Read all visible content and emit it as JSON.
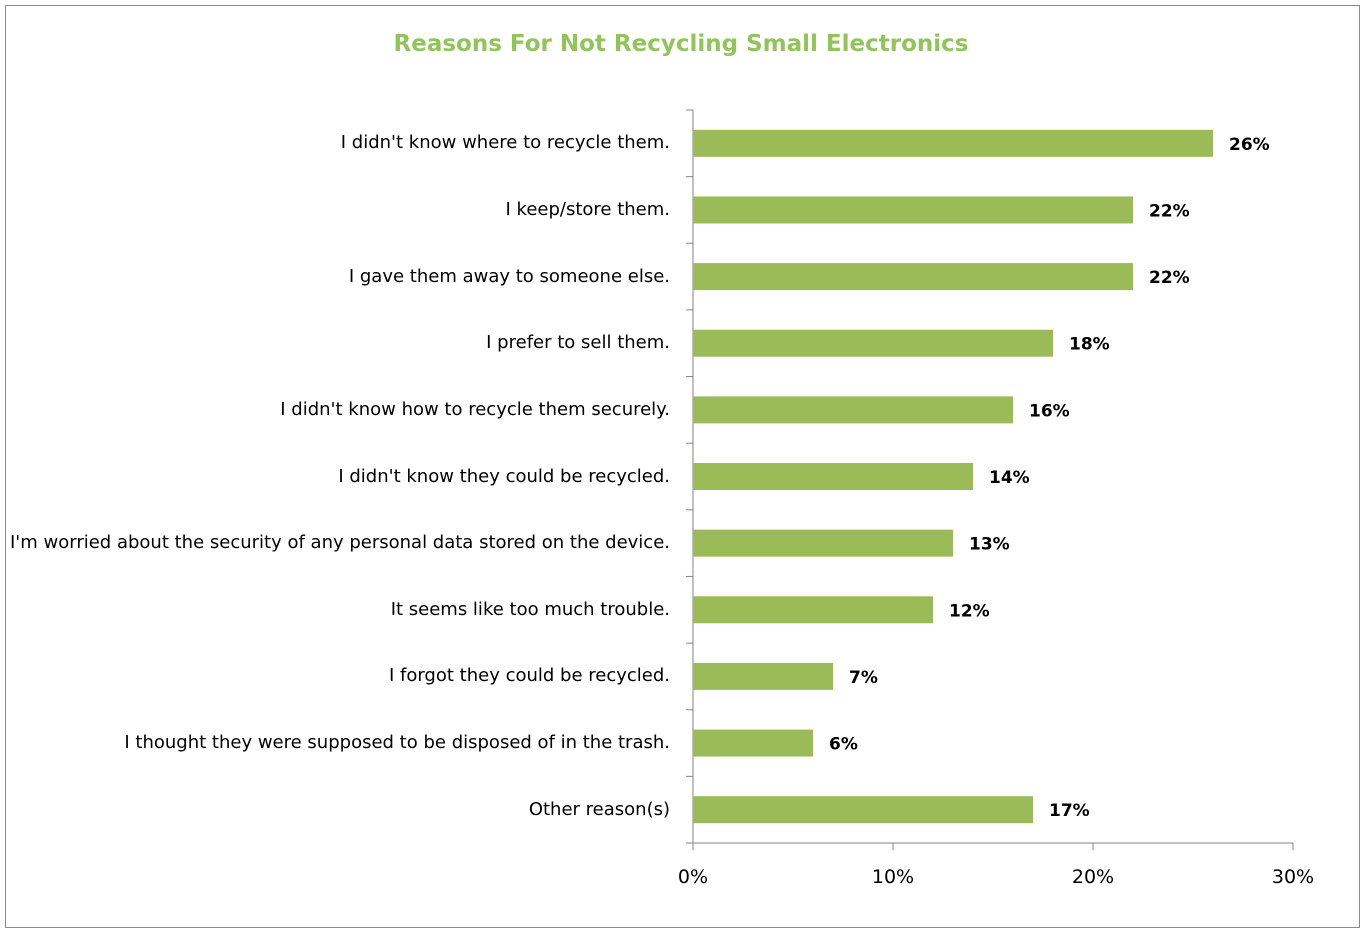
{
  "chart_data": {
    "type": "bar",
    "orientation": "horizontal",
    "title": "Reasons For Not Recycling Small Electronics",
    "categories": [
      "I didn't know where to recycle them.",
      "I keep/store them.",
      "I gave them away to someone else.",
      "I prefer to sell them.",
      "I didn't know how to recycle them securely.",
      "I didn't know they could be recycled.",
      "I'm worried about the security of any personal data stored on the device.",
      "It seems like too much trouble.",
      "I forgot they could be recycled.",
      "I thought they were supposed to be disposed of in the trash.",
      "Other reason(s)"
    ],
    "values": [
      26,
      22,
      22,
      18,
      16,
      14,
      13,
      12,
      7,
      6,
      17
    ],
    "value_labels": [
      "26%",
      "22%",
      "22%",
      "18%",
      "16%",
      "14%",
      "13%",
      "12%",
      "7%",
      "6%",
      "17%"
    ],
    "xlim": [
      0,
      30
    ],
    "x_ticks": [
      0,
      10,
      20,
      30
    ],
    "x_tick_labels": [
      "0%",
      "10%",
      "20%",
      "30%"
    ],
    "grid": false,
    "legend": "none",
    "colors": {
      "bar": "#9bbb59",
      "title": "#92c45a",
      "axis": "#868686"
    }
  }
}
